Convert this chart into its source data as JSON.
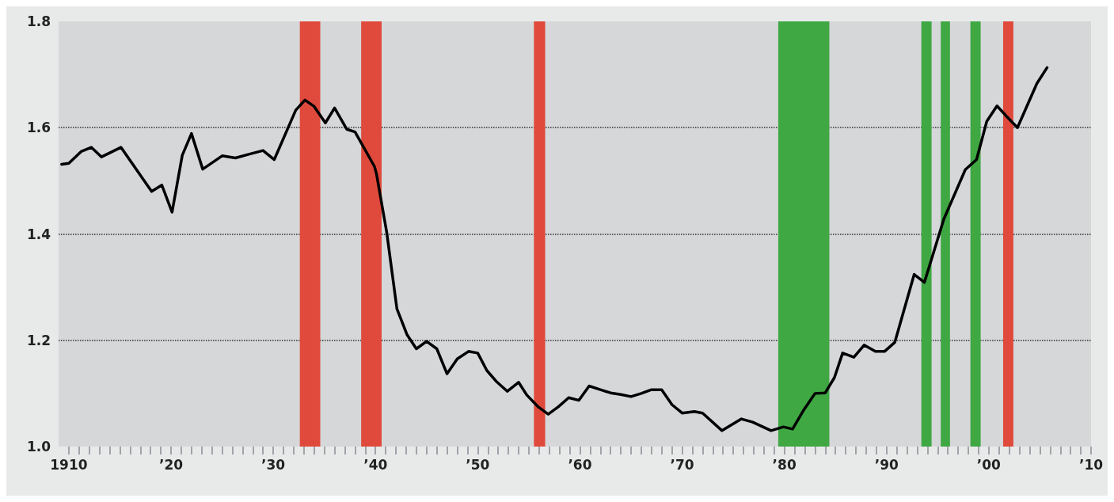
{
  "chart_data": {
    "type": "line",
    "x": [
      1909.3,
      1910,
      1911.2,
      1912.2,
      1913.2,
      1915.1,
      1918.1,
      1919.1,
      1920.1,
      1921.1,
      1922,
      1923.1,
      1925,
      1926.3,
      1927.6,
      1929,
      1930.1,
      1932.2,
      1933.1,
      1934,
      1935.1,
      1936,
      1937.2,
      1938,
      1939.9,
      1940.1,
      1941.1,
      1942.1,
      1943.1,
      1944,
      1945,
      1946,
      1947,
      1948,
      1949.1,
      1950,
      1950.9,
      1951.8,
      1952.9,
      1954,
      1954.8,
      1955.9,
      1956.9,
      1957.9,
      1958.9,
      1959.9,
      1960.9,
      1962,
      1963,
      1964,
      1965,
      1966,
      1967,
      1968,
      1969,
      1970,
      1971.2,
      1972,
      1973.9,
      1975.8,
      1976.9,
      1978.7,
      1979.9,
      1980.8,
      1981.9,
      1983,
      1984,
      1984.9,
      1985.7,
      1986.8,
      1987.8,
      1988.9,
      1989.8,
      1990.8,
      1992.7,
      1993.7,
      1995.6,
      1997.7,
      1998.8,
      1999.8,
      2000.8,
      2001.8,
      2002.8,
      2004.7,
      2005.7
    ],
    "series": [
      {
        "color": "#000000",
        "values": [
          1.531,
          1.533,
          1.555,
          1.563,
          1.545,
          1.563,
          1.48,
          1.492,
          1.441,
          1.548,
          1.589,
          1.522,
          1.547,
          1.543,
          1.55,
          1.557,
          1.54,
          1.633,
          1.652,
          1.64,
          1.609,
          1.637,
          1.597,
          1.592,
          1.527,
          1.513,
          1.403,
          1.259,
          1.21,
          1.184,
          1.198,
          1.184,
          1.137,
          1.165,
          1.179,
          1.176,
          1.143,
          1.123,
          1.104,
          1.121,
          1.097,
          1.075,
          1.061,
          1.075,
          1.092,
          1.087,
          1.114,
          1.107,
          1.101,
          1.098,
          1.094,
          1.1,
          1.107,
          1.107,
          1.079,
          1.063,
          1.066,
          1.063,
          1.03,
          1.052,
          1.046,
          1.03,
          1.037,
          1.033,
          1.069,
          1.1,
          1.101,
          1.13,
          1.176,
          1.168,
          1.191,
          1.179,
          1.179,
          1.196,
          1.324,
          1.309,
          1.428,
          1.521,
          1.54,
          1.612,
          1.641,
          1.62,
          1.6,
          1.683,
          1.713
        ]
      }
    ],
    "xlim": [
      1909,
      2010
    ],
    "xticks": [
      {
        "value": 1910,
        "label": "1910"
      },
      {
        "value": 1911,
        "label": null
      },
      {
        "value": 1912,
        "label": null
      },
      {
        "value": 1913,
        "label": null
      },
      {
        "value": 1914,
        "label": null
      },
      {
        "value": 1915,
        "label": null
      },
      {
        "value": 1916,
        "label": null
      },
      {
        "value": 1917,
        "label": null
      },
      {
        "value": 1918,
        "label": null
      },
      {
        "value": 1919,
        "label": null
      },
      {
        "value": 1920,
        "label": "’20"
      },
      {
        "value": 1921,
        "label": null
      },
      {
        "value": 1922,
        "label": null
      },
      {
        "value": 1923,
        "label": null
      },
      {
        "value": 1924,
        "label": null
      },
      {
        "value": 1925,
        "label": null
      },
      {
        "value": 1926,
        "label": null
      },
      {
        "value": 1927,
        "label": null
      },
      {
        "value": 1928,
        "label": null
      },
      {
        "value": 1929,
        "label": null
      },
      {
        "value": 1930,
        "label": "’30"
      },
      {
        "value": 1931,
        "label": null
      },
      {
        "value": 1932,
        "label": null
      },
      {
        "value": 1933,
        "label": null
      },
      {
        "value": 1934,
        "label": null
      },
      {
        "value": 1935,
        "label": null
      },
      {
        "value": 1936,
        "label": null
      },
      {
        "value": 1937,
        "label": null
      },
      {
        "value": 1938,
        "label": null
      },
      {
        "value": 1939,
        "label": null
      },
      {
        "value": 1940,
        "label": "’40"
      },
      {
        "value": 1941,
        "label": null
      },
      {
        "value": 1942,
        "label": null
      },
      {
        "value": 1943,
        "label": null
      },
      {
        "value": 1944,
        "label": null
      },
      {
        "value": 1945,
        "label": null
      },
      {
        "value": 1946,
        "label": null
      },
      {
        "value": 1947,
        "label": null
      },
      {
        "value": 1948,
        "label": null
      },
      {
        "value": 1949,
        "label": null
      },
      {
        "value": 1950,
        "label": "’50"
      },
      {
        "value": 1951,
        "label": null
      },
      {
        "value": 1952,
        "label": null
      },
      {
        "value": 1953,
        "label": null
      },
      {
        "value": 1954,
        "label": null
      },
      {
        "value": 1955,
        "label": null
      },
      {
        "value": 1956,
        "label": null
      },
      {
        "value": 1957,
        "label": null
      },
      {
        "value": 1958,
        "label": null
      },
      {
        "value": 1959,
        "label": null
      },
      {
        "value": 1960,
        "label": "’60"
      },
      {
        "value": 1961,
        "label": null
      },
      {
        "value": 1962,
        "label": null
      },
      {
        "value": 1963,
        "label": null
      },
      {
        "value": 1964,
        "label": null
      },
      {
        "value": 1965,
        "label": null
      },
      {
        "value": 1966,
        "label": null
      },
      {
        "value": 1967,
        "label": null
      },
      {
        "value": 1968,
        "label": null
      },
      {
        "value": 1969,
        "label": null
      },
      {
        "value": 1970,
        "label": "’70"
      },
      {
        "value": 1971,
        "label": null
      },
      {
        "value": 1972,
        "label": null
      },
      {
        "value": 1973,
        "label": null
      },
      {
        "value": 1974,
        "label": null
      },
      {
        "value": 1975,
        "label": null
      },
      {
        "value": 1976,
        "label": null
      },
      {
        "value": 1977,
        "label": null
      },
      {
        "value": 1978,
        "label": null
      },
      {
        "value": 1979,
        "label": null
      },
      {
        "value": 1980,
        "label": "’80"
      },
      {
        "value": 1981,
        "label": null
      },
      {
        "value": 1982,
        "label": null
      },
      {
        "value": 1983,
        "label": null
      },
      {
        "value": 1984,
        "label": null
      },
      {
        "value": 1985,
        "label": null
      },
      {
        "value": 1986,
        "label": null
      },
      {
        "value": 1987,
        "label": null
      },
      {
        "value": 1988,
        "label": null
      },
      {
        "value": 1989,
        "label": null
      },
      {
        "value": 1990,
        "label": "’90"
      },
      {
        "value": 1991,
        "label": null
      },
      {
        "value": 1992,
        "label": null
      },
      {
        "value": 1993,
        "label": null
      },
      {
        "value": 1994,
        "label": null
      },
      {
        "value": 1995,
        "label": null
      },
      {
        "value": 1996,
        "label": null
      },
      {
        "value": 1997,
        "label": null
      },
      {
        "value": 1998,
        "label": null
      },
      {
        "value": 1999,
        "label": null
      },
      {
        "value": 2000,
        "label": "’00"
      },
      {
        "value": 2001,
        "label": null
      },
      {
        "value": 2002,
        "label": null
      },
      {
        "value": 2003,
        "label": null
      },
      {
        "value": 2004,
        "label": null
      },
      {
        "value": 2005,
        "label": null
      },
      {
        "value": 2006,
        "label": null
      },
      {
        "value": 2007,
        "label": null
      },
      {
        "value": 2008,
        "label": null
      },
      {
        "value": 2009,
        "label": null
      },
      {
        "value": 2010,
        "label": "’10"
      }
    ],
    "ylim": [
      1.0,
      1.8
    ],
    "yticks": [
      {
        "value": 1.0,
        "label": "1.0"
      },
      {
        "value": 1.2,
        "label": "1.2"
      },
      {
        "value": 1.4,
        "label": "1.4"
      },
      {
        "value": 1.6,
        "label": "1.6"
      },
      {
        "value": 1.8,
        "label": "1.8"
      }
    ],
    "grid": "y",
    "marker": "none",
    "line_style": "solid",
    "bands": [
      {
        "axis": "x",
        "from": 1932.6,
        "to": 1934.6,
        "color": "#e04a3c"
      },
      {
        "axis": "x",
        "from": 1938.6,
        "to": 1940.6,
        "color": "#e04a3c"
      },
      {
        "axis": "x",
        "from": 1955.5,
        "to": 1956.6,
        "color": "#e04a3c"
      },
      {
        "axis": "x",
        "from": 1979.4,
        "to": 1984.4,
        "color": "#3fa843"
      },
      {
        "axis": "x",
        "from": 1993.4,
        "to": 1994.4,
        "color": "#3fa843"
      },
      {
        "axis": "x",
        "from": 1995.3,
        "to": 1996.2,
        "color": "#3fa843"
      },
      {
        "axis": "x",
        "from": 1998.2,
        "to": 1999.2,
        "color": "#3fa843"
      },
      {
        "axis": "x",
        "from": 2001.4,
        "to": 2002.4,
        "color": "#e04a3c"
      }
    ]
  }
}
